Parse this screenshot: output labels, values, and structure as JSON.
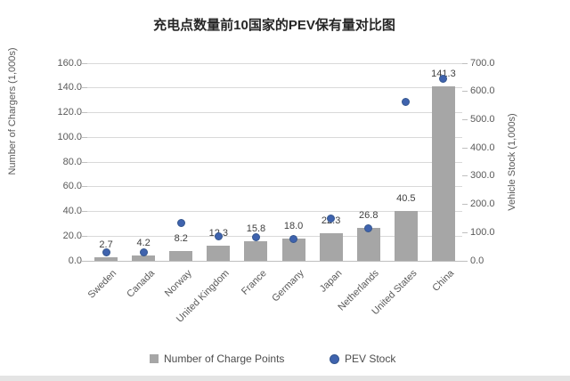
{
  "chart_data": {
    "type": "bar",
    "combo": "bar + scatter overlay",
    "title": "充电点数量前10国家的PEV保有量对比图",
    "categories": [
      "Sweden",
      "Canada",
      "Norway",
      "United Kingdom",
      "France",
      "Germany",
      "Japan",
      "Netherlands",
      "United States",
      "China"
    ],
    "series": [
      {
        "name": "Number of Charge Points",
        "chart_type": "bar",
        "axis": "left",
        "values": [
          2.7,
          4.2,
          8.2,
          12.3,
          15.8,
          18.0,
          22.3,
          26.8,
          40.5,
          141.3
        ],
        "data_labels": [
          "2.7",
          "4.2",
          "8.2",
          "12.3",
          "15.8",
          "18.0",
          "22.3",
          "26.8",
          "40.5",
          "141.3"
        ]
      },
      {
        "name": "PEV Stock",
        "chart_type": "scatter",
        "axis": "right",
        "values": [
          30,
          30,
          134,
          87,
          84,
          76,
          151,
          116,
          564,
          646
        ]
      }
    ],
    "left_axis": {
      "title": "Number of Chargers (1,000s)",
      "min": 0,
      "max": 160,
      "step": 20,
      "tick_labels": [
        "0.0",
        "20.0",
        "40.0",
        "60.0",
        "80.0",
        "100.0",
        "120.0",
        "140.0",
        "160.0"
      ]
    },
    "right_axis": {
      "title": "Vehicle Stock (1,000s)",
      "min": 0,
      "max": 700,
      "step": 100,
      "tick_labels": [
        "0.0",
        "100.0",
        "200.0",
        "300.0",
        "400.0",
        "500.0",
        "600.0",
        "700.0"
      ]
    },
    "grid": true,
    "legend_position": "bottom"
  },
  "legend": {
    "items": [
      {
        "label": "Number of Charge Points",
        "swatch": "square"
      },
      {
        "label": "PEV Stock",
        "swatch": "circle"
      }
    ]
  },
  "colors": {
    "bar": "#a6a6a6",
    "dot": "#3f63ae",
    "dot_border": "#35578f",
    "grid": "#d9d9d9",
    "axis_line": "#bfbfbf",
    "tick_text": "#595959",
    "data_label": "#404040",
    "title_text": "#262626",
    "legend_text": "#4d4d4d",
    "bottom_strip": "#e4e4e4"
  }
}
